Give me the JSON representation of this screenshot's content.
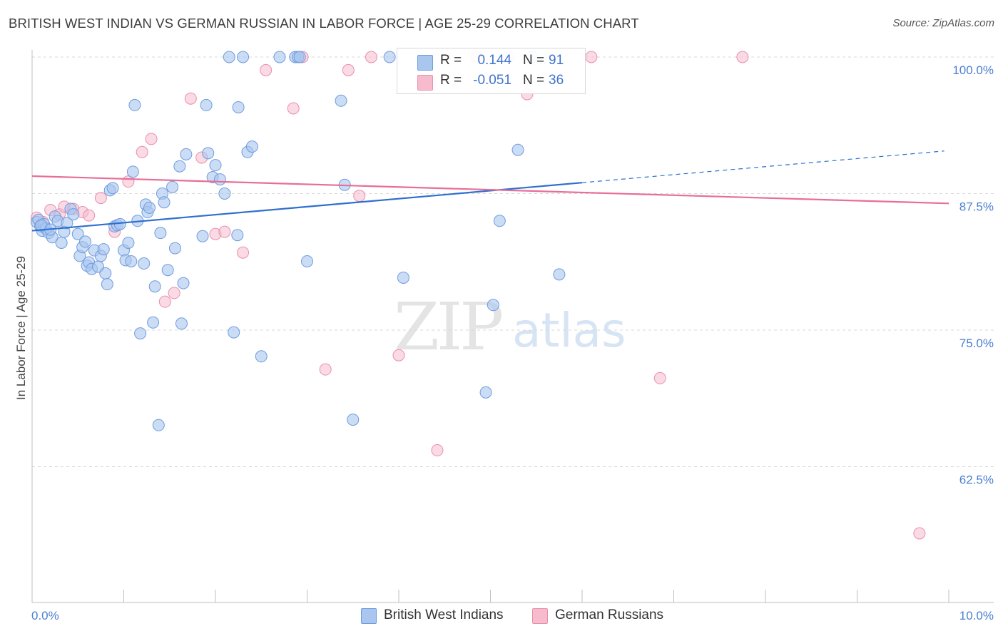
{
  "title": "BRITISH WEST INDIAN VS GERMAN RUSSIAN IN LABOR FORCE | AGE 25-29 CORRELATION CHART",
  "source": "Source: ZipAtlas.com",
  "watermark": {
    "zip": "ZIP",
    "atlas": "atlas"
  },
  "legend_top": {
    "series1": {
      "r_label": "R =",
      "r_value": "0.144",
      "n_label": "N =",
      "n_value": "91"
    },
    "series2": {
      "r_label": "R =",
      "r_value": "-0.051",
      "n_label": "N =",
      "n_value": "36"
    }
  },
  "colors": {
    "blue_fill": "#a9c6ee",
    "blue_stroke": "#6f9be0",
    "blue_line": "#2f6fce",
    "pink_fill": "#f6bccd",
    "pink_stroke": "#ea8fab",
    "pink_line": "#e86e97",
    "tick_text": "#4a7fd0",
    "grid": "#d9d9d9"
  },
  "chart_data": {
    "type": "scatter",
    "title": "BRITISH WEST INDIAN VS GERMAN RUSSIAN IN LABOR FORCE | AGE 25-29 CORRELATION CHART",
    "xlabel": "",
    "ylabel": "In Labor Force | Age 25-29",
    "xlim": [
      0,
      10
    ],
    "ylim": [
      50.0,
      101.5
    ],
    "x_tick_labels": [
      "0.0%",
      "10.0%"
    ],
    "y_ticks": [
      62.5,
      75.0,
      87.5,
      100.0
    ],
    "y_tick_labels": [
      "62.5%",
      "75.0%",
      "87.5%",
      "100.0%"
    ],
    "grid": true,
    "legend_position": "bottom",
    "series": [
      {
        "name": "British West Indians",
        "r": 0.144,
        "n": 91,
        "trend": {
          "x0": 0.0,
          "y0": 84.1,
          "x1": 6.0,
          "y1": 88.5,
          "x_dash_end": 9.95,
          "y_dash_end": 91.4
        },
        "points": [
          [
            0.05,
            84.9
          ],
          [
            0.07,
            85.1
          ],
          [
            0.09,
            84.5
          ],
          [
            0.11,
            84.1
          ],
          [
            0.13,
            84.7
          ],
          [
            0.15,
            84.3
          ],
          [
            0.18,
            83.9
          ],
          [
            0.22,
            83.5
          ],
          [
            0.25,
            85.4
          ],
          [
            0.28,
            85.0
          ],
          [
            0.32,
            83.0
          ],
          [
            0.35,
            84.0
          ],
          [
            0.38,
            84.8
          ],
          [
            0.42,
            86.1
          ],
          [
            0.45,
            85.6
          ],
          [
            0.5,
            83.8
          ],
          [
            0.52,
            81.8
          ],
          [
            0.55,
            82.6
          ],
          [
            0.58,
            83.1
          ],
          [
            0.6,
            80.9
          ],
          [
            0.62,
            81.2
          ],
          [
            0.65,
            80.6
          ],
          [
            0.68,
            82.3
          ],
          [
            0.72,
            80.8
          ],
          [
            0.75,
            81.8
          ],
          [
            0.78,
            82.4
          ],
          [
            0.8,
            80.2
          ],
          [
            0.82,
            79.2
          ],
          [
            0.85,
            87.8
          ],
          [
            0.88,
            88.0
          ],
          [
            0.9,
            84.5
          ],
          [
            0.93,
            84.6
          ],
          [
            0.96,
            84.7
          ],
          [
            1.0,
            82.3
          ],
          [
            1.02,
            81.4
          ],
          [
            1.05,
            83.0
          ],
          [
            1.08,
            81.3
          ],
          [
            1.1,
            89.5
          ],
          [
            1.12,
            95.6
          ],
          [
            1.15,
            85.0
          ],
          [
            1.18,
            74.7
          ],
          [
            1.22,
            81.1
          ],
          [
            1.24,
            86.5
          ],
          [
            1.26,
            85.8
          ],
          [
            1.28,
            86.2
          ],
          [
            1.32,
            75.7
          ],
          [
            1.34,
            79.0
          ],
          [
            1.38,
            66.3
          ],
          [
            1.4,
            83.9
          ],
          [
            1.42,
            87.5
          ],
          [
            1.44,
            86.7
          ],
          [
            1.48,
            80.5
          ],
          [
            1.53,
            88.1
          ],
          [
            1.56,
            82.5
          ],
          [
            1.61,
            90.0
          ],
          [
            1.63,
            75.6
          ],
          [
            1.65,
            79.3
          ],
          [
            1.68,
            91.1
          ],
          [
            1.86,
            83.6
          ],
          [
            1.9,
            95.6
          ],
          [
            1.92,
            91.2
          ],
          [
            1.97,
            89.0
          ],
          [
            2.0,
            90.1
          ],
          [
            2.05,
            88.8
          ],
          [
            2.1,
            87.5
          ],
          [
            2.15,
            100.0
          ],
          [
            2.2,
            74.8
          ],
          [
            2.24,
            83.7
          ],
          [
            2.25,
            95.4
          ],
          [
            2.3,
            100.0
          ],
          [
            2.35,
            91.3
          ],
          [
            2.4,
            91.8
          ],
          [
            2.5,
            72.6
          ],
          [
            2.7,
            100.0
          ],
          [
            2.87,
            100.0
          ],
          [
            2.9,
            100.0
          ],
          [
            2.92,
            100.0
          ],
          [
            3.0,
            81.3
          ],
          [
            3.37,
            96.0
          ],
          [
            3.41,
            88.3
          ],
          [
            3.5,
            66.8
          ],
          [
            3.9,
            100.0
          ],
          [
            4.05,
            79.8
          ],
          [
            4.95,
            69.3
          ],
          [
            5.03,
            77.3
          ],
          [
            5.1,
            85.0
          ],
          [
            5.3,
            91.5
          ],
          [
            5.45,
            100.0
          ],
          [
            5.75,
            80.1
          ],
          [
            0.1,
            84.6
          ],
          [
            0.2,
            84.2
          ]
        ]
      },
      {
        "name": "German Russians",
        "r": -0.051,
        "n": 36,
        "trend": {
          "x0": 0.0,
          "y0": 89.1,
          "x1": 10.0,
          "y1": 86.6
        },
        "points": [
          [
            0.05,
            85.3
          ],
          [
            0.12,
            84.9
          ],
          [
            0.2,
            86.0
          ],
          [
            0.3,
            85.6
          ],
          [
            0.35,
            86.3
          ],
          [
            0.45,
            86.1
          ],
          [
            0.55,
            85.8
          ],
          [
            0.62,
            85.5
          ],
          [
            0.75,
            87.1
          ],
          [
            0.9,
            84.0
          ],
          [
            1.05,
            88.6
          ],
          [
            1.2,
            91.3
          ],
          [
            1.3,
            92.5
          ],
          [
            1.45,
            77.6
          ],
          [
            1.55,
            78.4
          ],
          [
            1.73,
            96.2
          ],
          [
            1.85,
            90.8
          ],
          [
            2.0,
            83.8
          ],
          [
            2.1,
            84.0
          ],
          [
            2.3,
            82.1
          ],
          [
            2.55,
            98.8
          ],
          [
            2.85,
            95.3
          ],
          [
            2.95,
            100.0
          ],
          [
            3.2,
            71.4
          ],
          [
            3.45,
            98.8
          ],
          [
            3.57,
            87.3
          ],
          [
            3.7,
            100.0
          ],
          [
            4.0,
            72.7
          ],
          [
            4.42,
            64.0
          ],
          [
            4.85,
            100.0
          ],
          [
            5.2,
            100.0
          ],
          [
            5.4,
            96.6
          ],
          [
            6.1,
            100.0
          ],
          [
            6.85,
            70.6
          ],
          [
            7.75,
            100.0
          ],
          [
            9.68,
            56.4
          ]
        ]
      }
    ]
  },
  "legend_bottom": {
    "item1": "British West Indians",
    "item2": "German Russians"
  },
  "axis": {
    "x_left": "0.0%",
    "x_right": "10.0%",
    "ylabel": "In Labor Force | Age 25-29"
  }
}
